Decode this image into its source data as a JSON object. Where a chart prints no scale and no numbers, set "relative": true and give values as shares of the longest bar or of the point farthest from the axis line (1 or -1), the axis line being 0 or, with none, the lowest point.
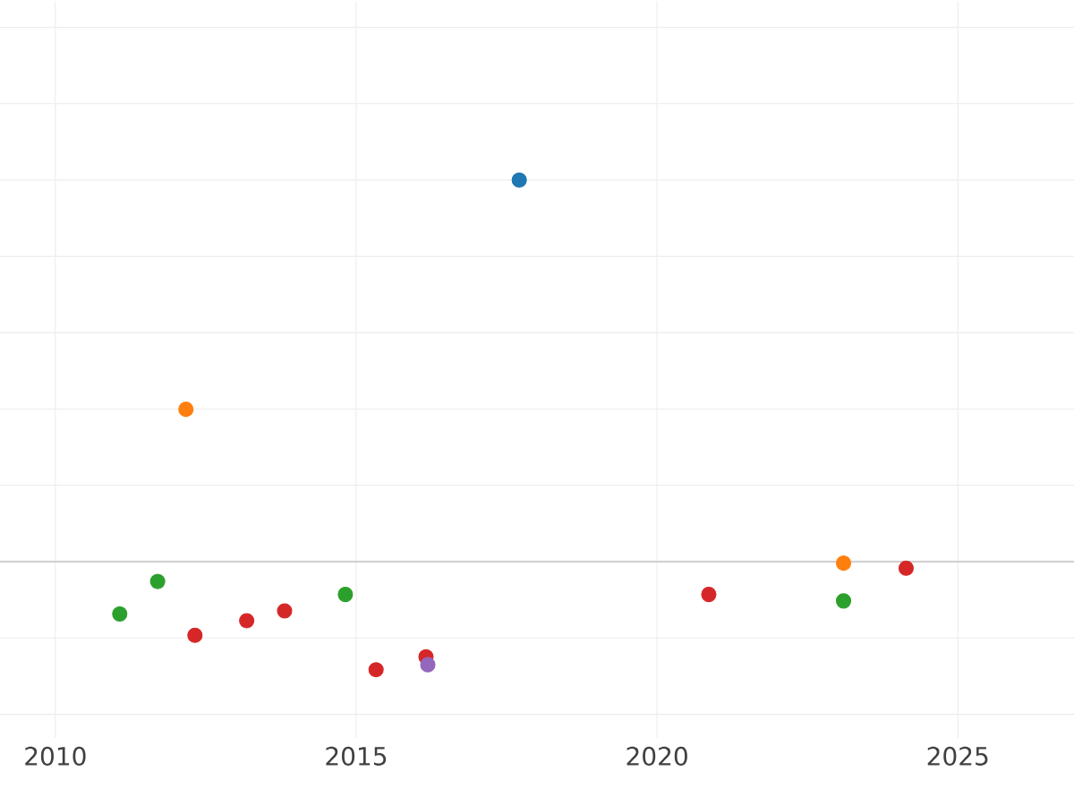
{
  "chart_data": {
    "type": "scatter",
    "relative": true,
    "marker": "circle",
    "grid": true,
    "xlim": [
      2009.08,
      2026.93
    ],
    "xticks": [
      2010,
      2015,
      2020,
      2025
    ],
    "series": [
      {
        "color": "#1f77b4",
        "x": [
          2017.71
        ],
        "values": [
          1
        ]
      },
      {
        "color": "#ff7f0e",
        "x": [
          2012.17,
          2023.1
        ],
        "values": [
          0.399,
          -0.004
        ]
      },
      {
        "color": "#2ca02c",
        "x": [
          2011.07,
          2011.7,
          2014.82,
          2023.1
        ],
        "values": [
          -0.137,
          -0.052,
          -0.086,
          -0.103
        ]
      },
      {
        "color": "#d62728",
        "x": [
          2012.32,
          2013.18,
          2013.81,
          2015.33,
          2016.16,
          2020.86,
          2024.14
        ],
        "values": [
          -0.193,
          -0.155,
          -0.129,
          -0.283,
          -0.249,
          -0.086,
          -0.017
        ]
      },
      {
        "color": "#9467bd",
        "x": [
          2016.19
        ],
        "values": [
          -0.27
        ]
      }
    ]
  }
}
